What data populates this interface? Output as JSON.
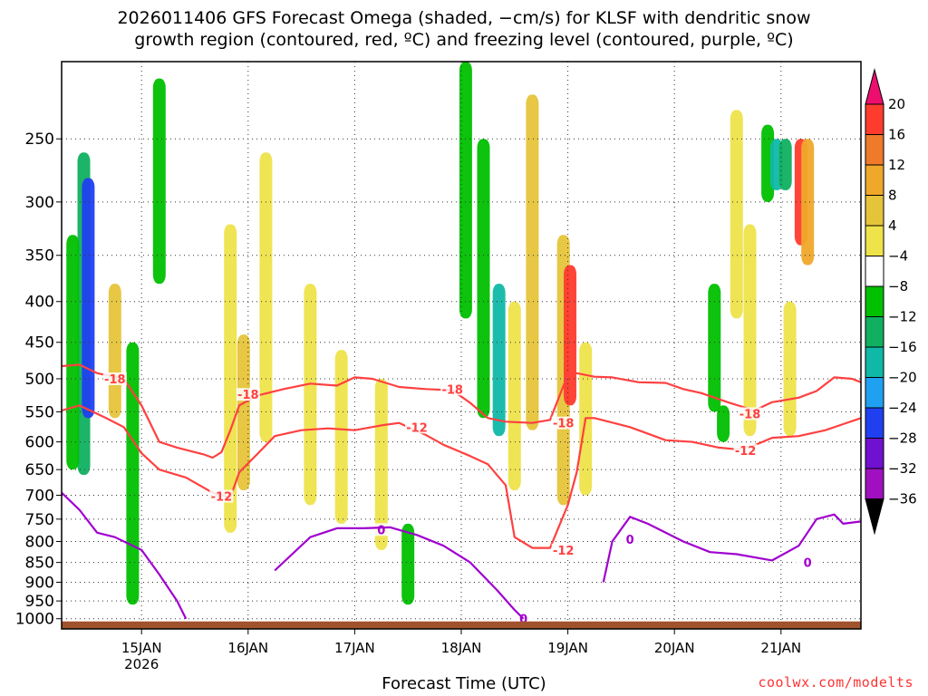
{
  "title": {
    "line1": "2026011406 GFS Forecast Omega (shaded, −cm/s) for KLSF with dendritic snow",
    "line2": "growth region (contoured, red, ºC) and freezing level (contoured, purple, ºC)"
  },
  "credit": "coolwx.com/modelts",
  "chart_data": {
    "type": "heatmap",
    "xlabel": "Forecast Time (UTC)",
    "x_ticks": [
      {
        "label": "15JAN",
        "sublabel": "2026",
        "hours": 18
      },
      {
        "label": "16JAN",
        "hours": 42
      },
      {
        "label": "17JAN",
        "hours": 66
      },
      {
        "label": "18JAN",
        "hours": 90
      },
      {
        "label": "19JAN",
        "hours": 114
      },
      {
        "label": "20JAN",
        "hours": 138
      },
      {
        "label": "21JAN",
        "hours": 162
      }
    ],
    "xlim_hours": [
      0,
      180
    ],
    "y_scale": "log-pressure",
    "ylim_hPa": [
      1030,
      200
    ],
    "y_ticks": [
      250,
      300,
      350,
      400,
      450,
      500,
      550,
      600,
      650,
      700,
      750,
      800,
      850,
      900,
      950,
      1000
    ],
    "colorbar": {
      "levels": [
        20,
        16,
        12,
        8,
        4,
        -4,
        -8,
        -12,
        -16,
        -20,
        -24,
        -28,
        -32,
        -36
      ],
      "colors": [
        "#ee0e6e",
        "#ff3b2e",
        "#ee7a2a",
        "#f0a82a",
        "#e6c43a",
        "#eee34a",
        "#ffffff",
        "#00c000",
        "#10b060",
        "#10b8a8",
        "#20a0f0",
        "#2040f0",
        "#7010d0",
        "#a010c0",
        "#a8a8a8",
        "#000000"
      ]
    },
    "omega_regions": [
      {
        "t": 5.0,
        "p0": 260,
        "p1": 660,
        "v": -12
      },
      {
        "t": 6.0,
        "p0": 280,
        "p1": 560,
        "v": -24
      },
      {
        "t": 2.5,
        "p0": 330,
        "p1": 650,
        "v": -8
      },
      {
        "t": 12.0,
        "p0": 380,
        "p1": 560,
        "v": 8
      },
      {
        "t": 16.0,
        "p0": 450,
        "p1": 960,
        "v": -8
      },
      {
        "t": 22.0,
        "p0": 210,
        "p1": 380,
        "v": -8
      },
      {
        "t": 38.0,
        "p0": 320,
        "p1": 780,
        "v": 4
      },
      {
        "t": 41.0,
        "p0": 440,
        "p1": 690,
        "v": 8
      },
      {
        "t": 46.0,
        "p0": 260,
        "p1": 600,
        "v": 4
      },
      {
        "t": 56.0,
        "p0": 380,
        "p1": 720,
        "v": 4
      },
      {
        "t": 63.0,
        "p0": 460,
        "p1": 760,
        "v": 4
      },
      {
        "t": 72.0,
        "p0": 500,
        "p1": 820,
        "v": 4
      },
      {
        "t": 78.0,
        "p0": 760,
        "p1": 960,
        "v": -8
      },
      {
        "t": 91.0,
        "p0": 200,
        "p1": 420,
        "v": -8
      },
      {
        "t": 95.0,
        "p0": 250,
        "p1": 560,
        "v": -8
      },
      {
        "t": 98.5,
        "p0": 380,
        "p1": 590,
        "v": -16
      },
      {
        "t": 102.0,
        "p0": 400,
        "p1": 690,
        "v": 4
      },
      {
        "t": 106.0,
        "p0": 220,
        "p1": 580,
        "v": 8
      },
      {
        "t": 113.0,
        "p0": 330,
        "p1": 720,
        "v": 8
      },
      {
        "t": 114.5,
        "p0": 360,
        "p1": 540,
        "v": 20
      },
      {
        "t": 118.0,
        "p0": 450,
        "p1": 700,
        "v": 4
      },
      {
        "t": 147.0,
        "p0": 380,
        "p1": 550,
        "v": -8
      },
      {
        "t": 149.0,
        "p0": 540,
        "p1": 600,
        "v": -8
      },
      {
        "t": 152.0,
        "p0": 230,
        "p1": 420,
        "v": 4
      },
      {
        "t": 155.0,
        "p0": 320,
        "p1": 590,
        "v": 4
      },
      {
        "t": 159.0,
        "p0": 240,
        "p1": 300,
        "v": -8
      },
      {
        "t": 161.0,
        "p0": 250,
        "p1": 290,
        "v": -16
      },
      {
        "t": 163.0,
        "p0": 250,
        "p1": 290,
        "v": -12
      },
      {
        "t": 166.5,
        "p0": 250,
        "p1": 340,
        "v": 20
      },
      {
        "t": 168.0,
        "p0": 250,
        "p1": 360,
        "v": 12
      },
      {
        "t": 164.0,
        "p0": 400,
        "p1": 590,
        "v": 4
      }
    ],
    "contours": [
      {
        "name": "-18",
        "color": "#ff4040",
        "labels": [
          {
            "text": "-18",
            "t": 12,
            "p": 500
          },
          {
            "text": "-18",
            "t": 42,
            "p": 523
          },
          {
            "text": "-18",
            "t": 88,
            "p": 515
          },
          {
            "text": "-18",
            "t": 113,
            "p": 568
          },
          {
            "text": "-18",
            "t": 155,
            "p": 553
          }
        ],
        "points": [
          [
            0,
            482
          ],
          [
            4,
            480
          ],
          [
            8,
            492
          ],
          [
            14,
            500
          ],
          [
            18,
            540
          ],
          [
            22,
            600
          ],
          [
            26,
            610
          ],
          [
            32,
            622
          ],
          [
            34,
            628
          ],
          [
            36,
            618
          ],
          [
            38,
            580
          ],
          [
            40,
            540
          ],
          [
            44,
            525
          ],
          [
            50,
            515
          ],
          [
            56,
            507
          ],
          [
            62,
            510
          ],
          [
            66,
            498
          ],
          [
            70,
            500
          ],
          [
            76,
            512
          ],
          [
            82,
            515
          ],
          [
            88,
            517
          ],
          [
            92,
            536
          ],
          [
            96,
            560
          ],
          [
            100,
            566
          ],
          [
            106,
            568
          ],
          [
            110,
            563
          ],
          [
            114,
            494
          ],
          [
            116,
            492
          ],
          [
            120,
            497
          ],
          [
            124,
            498
          ],
          [
            130,
            505
          ],
          [
            136,
            506
          ],
          [
            140,
            515
          ],
          [
            144,
            521
          ],
          [
            150,
            535
          ],
          [
            156,
            548
          ],
          [
            160,
            535
          ],
          [
            166,
            528
          ],
          [
            170,
            518
          ],
          [
            174,
            498
          ],
          [
            178,
            500
          ],
          [
            180,
            505
          ]
        ]
      },
      {
        "name": "-12",
        "color": "#ff4040",
        "labels": [
          {
            "text": "-12",
            "t": 36,
            "p": 702
          },
          {
            "text": "-12",
            "t": 80,
            "p": 575
          },
          {
            "text": "-12",
            "t": 113,
            "p": 820
          },
          {
            "text": "-12",
            "t": 154,
            "p": 615
          }
        ],
        "points": [
          [
            0,
            548
          ],
          [
            4,
            540
          ],
          [
            10,
            560
          ],
          [
            14,
            575
          ],
          [
            18,
            620
          ],
          [
            22,
            650
          ],
          [
            28,
            665
          ],
          [
            34,
            695
          ],
          [
            38,
            705
          ],
          [
            40,
            655
          ],
          [
            44,
            622
          ],
          [
            48,
            590
          ],
          [
            54,
            580
          ],
          [
            60,
            577
          ],
          [
            66,
            580
          ],
          [
            72,
            572
          ],
          [
            76,
            568
          ],
          [
            82,
            588
          ],
          [
            86,
            605
          ],
          [
            92,
            625
          ],
          [
            96,
            640
          ],
          [
            100,
            680
          ],
          [
            102,
            790
          ],
          [
            106,
            815
          ],
          [
            110,
            815
          ],
          [
            114,
            720
          ],
          [
            116,
            655
          ],
          [
            118,
            560
          ],
          [
            120,
            560
          ],
          [
            128,
            575
          ],
          [
            136,
            597
          ],
          [
            142,
            600
          ],
          [
            148,
            610
          ],
          [
            152,
            613
          ],
          [
            156,
            606
          ],
          [
            160,
            593
          ],
          [
            166,
            590
          ],
          [
            172,
            580
          ],
          [
            176,
            570
          ],
          [
            180,
            560
          ]
        ]
      },
      {
        "name": "0",
        "color": "#a000d0",
        "labels": [
          {
            "text": "0",
            "t": 72,
            "p": 773
          },
          {
            "text": "0",
            "t": 128,
            "p": 795
          },
          {
            "text": "0",
            "t": 168,
            "p": 850
          },
          {
            "text": "0",
            "t": 104,
            "p": 1000
          }
        ],
        "points": [
          [
            0,
            695
          ],
          [
            4,
            730
          ],
          [
            8,
            780
          ],
          [
            12,
            790
          ],
          [
            18,
            820
          ],
          [
            22,
            880
          ],
          [
            26,
            950
          ],
          [
            28,
            1000
          ]
        ]
      },
      {
        "name": "0",
        "color": "#a000d0",
        "labels": [],
        "points": [
          [
            48,
            870
          ],
          [
            56,
            790
          ],
          [
            62,
            770
          ],
          [
            68,
            770
          ],
          [
            74,
            768
          ],
          [
            80,
            785
          ],
          [
            86,
            810
          ],
          [
            92,
            850
          ],
          [
            98,
            920
          ],
          [
            102,
            975
          ],
          [
            104,
            1000
          ]
        ]
      },
      {
        "name": "0",
        "color": "#a000d0",
        "labels": [],
        "points": [
          [
            122,
            900
          ],
          [
            124,
            800
          ],
          [
            128,
            745
          ],
          [
            132,
            760
          ],
          [
            140,
            800
          ],
          [
            146,
            825
          ],
          [
            152,
            830
          ],
          [
            160,
            845
          ],
          [
            166,
            810
          ],
          [
            170,
            750
          ],
          [
            174,
            740
          ],
          [
            176,
            760
          ],
          [
            180,
            755
          ]
        ]
      }
    ]
  }
}
